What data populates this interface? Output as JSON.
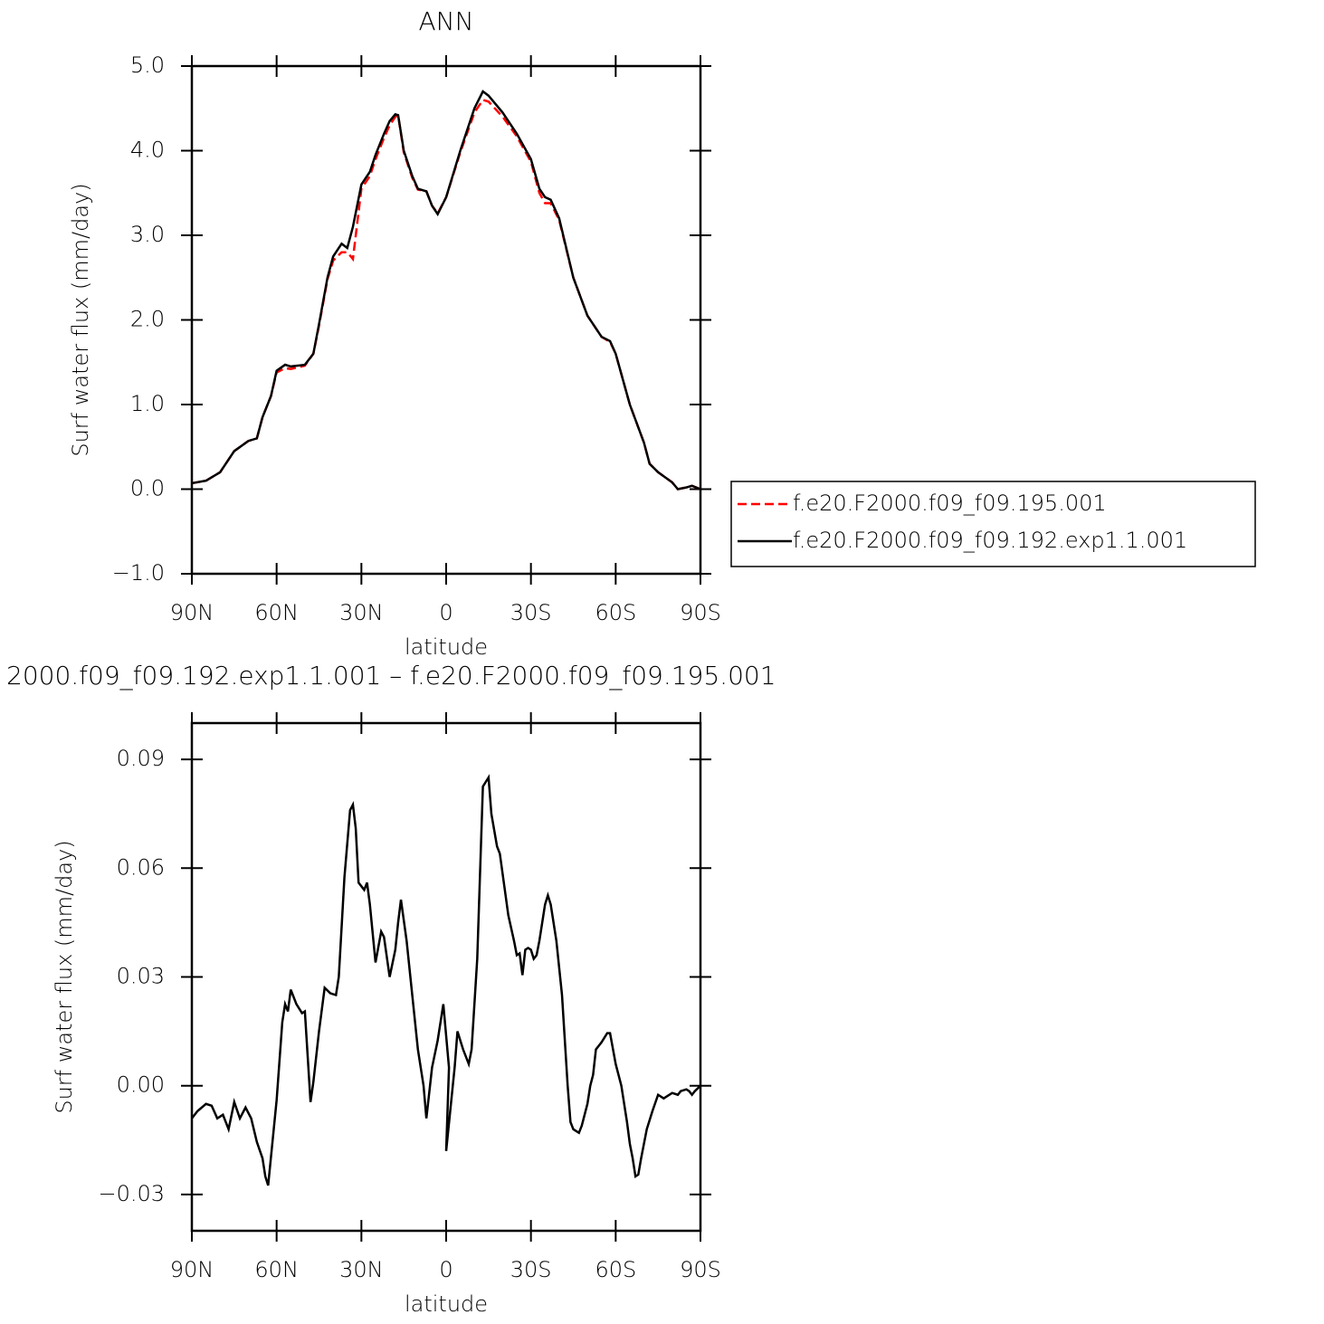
{
  "chart_data": [
    {
      "type": "line",
      "title": "ANN",
      "xlabel": "latitude",
      "ylabel": "Surf water flux (mm/day)",
      "x": [
        90,
        85,
        80,
        75,
        70,
        67,
        65,
        62,
        60,
        57,
        55,
        50,
        47,
        45,
        42,
        40,
        37,
        35,
        33,
        30,
        27,
        25,
        22,
        20,
        18,
        17,
        15,
        12,
        10,
        7,
        5,
        3,
        0,
        -5,
        -10,
        -13,
        -15,
        -20,
        -25,
        -30,
        -33,
        -35,
        -37,
        -40,
        -45,
        -50,
        -55,
        -58,
        -60,
        -65,
        -70,
        -72,
        -75,
        -80,
        -82,
        -85,
        -87,
        -90
      ],
      "series": [
        {
          "name": "f.e20.F2000.f09_f09.195.001",
          "color": "#ff0000",
          "linestyle": "dashed",
          "values": [
            0.07,
            0.1,
            0.2,
            0.45,
            0.57,
            0.6,
            0.85,
            1.1,
            1.38,
            1.43,
            1.42,
            1.46,
            1.6,
            1.93,
            2.48,
            2.7,
            2.8,
            2.8,
            2.72,
            3.55,
            3.7,
            3.9,
            4.15,
            4.3,
            4.4,
            4.42,
            3.98,
            3.68,
            3.54,
            3.52,
            3.35,
            3.26,
            3.45,
            3.98,
            4.45,
            4.6,
            4.58,
            4.4,
            4.17,
            3.87,
            3.5,
            3.38,
            3.38,
            3.18,
            2.5,
            2.05,
            1.8,
            1.74,
            1.6,
            1.0,
            0.55,
            0.3,
            0.2,
            0.08,
            0.0,
            0.02,
            0.04,
            0.0
          ]
        },
        {
          "name": "f.e20.F2000.f09_f09.192.exp1.1.001",
          "color": "#000000",
          "linestyle": "solid",
          "values": [
            0.07,
            0.1,
            0.2,
            0.45,
            0.57,
            0.6,
            0.85,
            1.1,
            1.4,
            1.47,
            1.45,
            1.47,
            1.6,
            1.95,
            2.5,
            2.75,
            2.9,
            2.85,
            3.1,
            3.6,
            3.75,
            3.95,
            4.2,
            4.35,
            4.43,
            4.42,
            4.0,
            3.7,
            3.55,
            3.52,
            3.35,
            3.25,
            3.45,
            4.0,
            4.5,
            4.7,
            4.65,
            4.45,
            4.2,
            3.9,
            3.55,
            3.45,
            3.42,
            3.2,
            2.5,
            2.05,
            1.8,
            1.75,
            1.6,
            1.0,
            0.55,
            0.3,
            0.2,
            0.08,
            0.0,
            0.02,
            0.04,
            0.0
          ]
        }
      ],
      "legend": "right",
      "xlim": [
        90,
        -90
      ],
      "xticks": [
        {
          "value": 90,
          "label": "90N"
        },
        {
          "value": 60,
          "label": "60N"
        },
        {
          "value": 30,
          "label": "30N"
        },
        0,
        {
          "value": -30,
          "label": "30S"
        },
        {
          "value": -60,
          "label": "60S"
        },
        {
          "value": -90,
          "label": "90S"
        }
      ],
      "ylim": [
        -1,
        5
      ],
      "yticks": [
        {
          "value": 5,
          "label": "5.0"
        },
        {
          "value": 4,
          "label": "4.0"
        },
        {
          "value": 3,
          "label": "3.0"
        },
        {
          "value": 2,
          "label": "2.0"
        },
        {
          "value": 1,
          "label": "1.0"
        },
        {
          "value": 0,
          "label": "0.0"
        },
        {
          "value": -1,
          "label": "−1.0"
        }
      ]
    },
    {
      "type": "line",
      "title": "2000.f09_f09.192.exp1.1.001 – f.e20.F2000.f09_f09.195.001",
      "xlabel": "latitude",
      "ylabel": "Surf water flux (mm/day)",
      "color": "#000000",
      "x": [
        90,
        88,
        85,
        83,
        81,
        79,
        77,
        75,
        73,
        71,
        69,
        67,
        65,
        64,
        63,
        60,
        58,
        57,
        56,
        55,
        53,
        51,
        50,
        48,
        47,
        45,
        43,
        41,
        39,
        38,
        36,
        34,
        33,
        32,
        31,
        30,
        29,
        28,
        27,
        25,
        23,
        22,
        20,
        18,
        17,
        16,
        14,
        12,
        10,
        8,
        7,
        5,
        3,
        1,
        -1,
        0,
        -3,
        -4,
        -6,
        -8,
        -9,
        -11,
        -13,
        -15,
        -16,
        -18,
        -19,
        -22,
        -24,
        -25,
        -26,
        -27,
        -28,
        -29,
        -30,
        -31,
        -32,
        -33,
        -35,
        -36,
        -37,
        -39,
        -41,
        -43,
        -44,
        -45,
        -46,
        -47,
        -48,
        -50,
        -51,
        -52,
        -53,
        -55,
        -57,
        -58,
        -60,
        -62,
        -64,
        -65,
        -66,
        -67,
        -68,
        -69,
        -71,
        -73,
        -75,
        -77,
        -78,
        -80,
        -82,
        -83,
        -85,
        -86,
        -87,
        -88,
        -90
      ],
      "values": [
        -0.009,
        -0.007,
        -0.005,
        -0.0055,
        -0.009,
        -0.008,
        -0.012,
        -0.0045,
        -0.009,
        -0.006,
        -0.009,
        -0.0155,
        -0.02,
        -0.025,
        -0.0275,
        -0.004,
        0.0175,
        0.0225,
        0.0205,
        0.0265,
        0.0225,
        0.02,
        0.0205,
        -0.0045,
        0.001,
        0.015,
        0.027,
        0.0255,
        0.025,
        0.03,
        0.0575,
        0.076,
        0.0775,
        0.071,
        0.056,
        0.055,
        0.054,
        0.056,
        0.05,
        0.034,
        0.0425,
        0.041,
        0.03,
        0.0375,
        0.045,
        0.0513,
        0.04,
        0.025,
        0.01,
        0.0,
        -0.009,
        0.005,
        0.0125,
        0.0225,
        0.005,
        -0.018,
        0.005,
        0.015,
        0.01,
        0.006,
        0.01,
        0.035,
        0.0825,
        0.085,
        0.075,
        0.066,
        0.064,
        0.047,
        0.04,
        0.036,
        0.0365,
        0.0305,
        0.0375,
        0.038,
        0.0375,
        0.035,
        0.036,
        0.04,
        0.05,
        0.0525,
        0.05,
        0.04,
        0.025,
        0.0,
        -0.01,
        -0.012,
        -0.0125,
        -0.013,
        -0.011,
        -0.005,
        0.0,
        0.003,
        0.01,
        0.012,
        0.0145,
        0.0145,
        0.006,
        0.0,
        -0.01,
        -0.016,
        -0.02,
        -0.025,
        -0.0245,
        -0.02,
        -0.012,
        -0.007,
        -0.0025,
        -0.0035,
        -0.003,
        -0.002,
        -0.0025,
        -0.0015,
        -0.001,
        -0.0015,
        -0.0025,
        -0.0015,
        0.0
      ],
      "xlim": [
        90,
        -90
      ],
      "xticks": [
        {
          "value": 90,
          "label": "90N"
        },
        {
          "value": 60,
          "label": "60N"
        },
        {
          "value": 30,
          "label": "30N"
        },
        0,
        {
          "value": -30,
          "label": "30S"
        },
        {
          "value": -60,
          "label": "60S"
        },
        {
          "value": -90,
          "label": "90S"
        }
      ],
      "ylim": [
        -0.04,
        0.1
      ],
      "yticks": [
        0.09,
        0.06,
        0.03,
        {
          "value": 0,
          "label": "0.00"
        },
        {
          "value": -0.03,
          "label": "−0.03"
        }
      ]
    }
  ]
}
